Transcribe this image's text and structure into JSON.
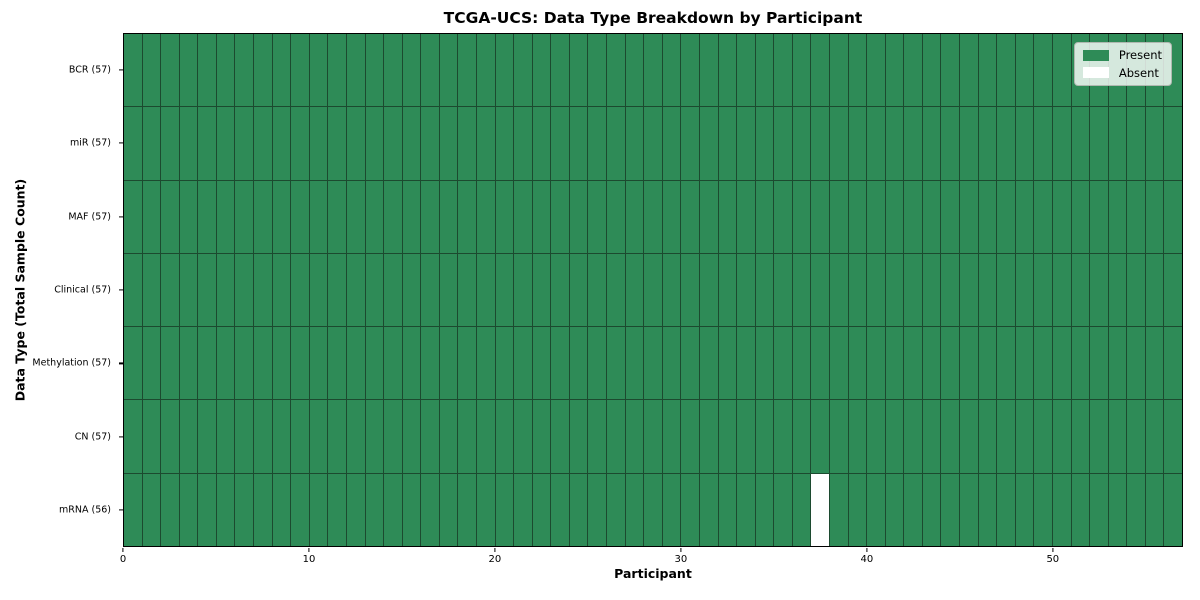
{
  "chart_data": {
    "type": "heatmap",
    "title": "TCGA-UCS: Data Type Breakdown by Participant",
    "xlabel": "Participant",
    "ylabel": "Data Type (Total Sample Count)",
    "n_participants": 57,
    "x_ticks": [
      0,
      10,
      20,
      30,
      40,
      50
    ],
    "rows": [
      {
        "label": "BCR (57)",
        "data_type": "BCR",
        "total_samples": 57,
        "absent_participants": []
      },
      {
        "label": "miR (57)",
        "data_type": "miR",
        "total_samples": 57,
        "absent_participants": []
      },
      {
        "label": "MAF (57)",
        "data_type": "MAF",
        "total_samples": 57,
        "absent_participants": []
      },
      {
        "label": "Clinical (57)",
        "data_type": "Clinical",
        "total_samples": 57,
        "absent_participants": []
      },
      {
        "label": "Methylation (57)",
        "data_type": "Methylation",
        "total_samples": 57,
        "absent_participants": []
      },
      {
        "label": "CN (57)",
        "data_type": "CN",
        "total_samples": 57,
        "absent_participants": []
      },
      {
        "label": "mRNA (56)",
        "data_type": "mRNA",
        "total_samples": 56,
        "absent_participants": [
          37
        ]
      }
    ],
    "legend": [
      {
        "label": "Present",
        "color": "#2E8B57"
      },
      {
        "label": "Absent",
        "color": "#FFFFFF"
      }
    ],
    "colors": {
      "present": "#2E8B57",
      "absent": "#FFFFFF",
      "grid_line": "#1C4A2F",
      "plot_border": "#000000",
      "legend_background": "rgba(255,255,255,0.8)"
    },
    "layout": {
      "legend_position": "upper right",
      "x_range": [
        0,
        57
      ],
      "cell_grid": "on"
    }
  }
}
